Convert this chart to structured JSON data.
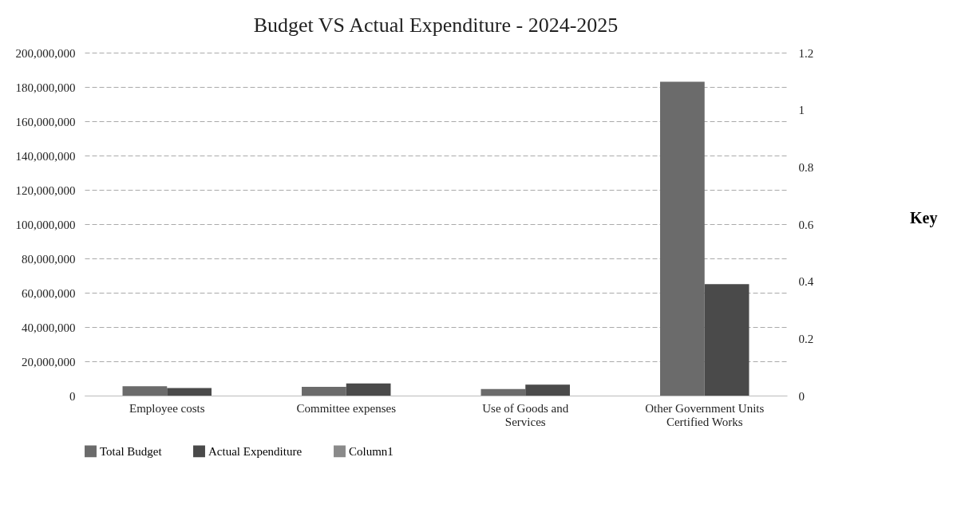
{
  "chart_data": {
    "type": "bar",
    "title": "Budget VS Actual Expenditure - 2024-2025",
    "categories": [
      "Employee costs",
      "Committee expenses",
      "Use of Goods and Services",
      "Other Government Units Certified Works"
    ],
    "series": [
      {
        "name": "Total Budget",
        "color": "#6b6b6b",
        "values": [
          5500000,
          5100000,
          3800000,
          183000000
        ]
      },
      {
        "name": "Actual Expenditure",
        "color": "#4a4a4a",
        "values": [
          4400000,
          7100000,
          6400000,
          65000000
        ]
      },
      {
        "name": "Column1",
        "type": "line",
        "axis": "y2",
        "color": "#8a8a8a",
        "values": [
          null,
          null,
          null,
          null
        ]
      }
    ],
    "ylim": [
      0,
      200000000
    ],
    "yticks": [
      0,
      {
        "value": 20000000,
        "label": "20,000,000"
      },
      {
        "value": 40000000,
        "label": "40,000,000"
      },
      {
        "value": 60000000,
        "label": "60,000,000"
      },
      {
        "value": 80000000,
        "label": "80,000,000"
      },
      {
        "value": 100000000,
        "label": "100,000,000"
      },
      {
        "value": 120000000,
        "label": "120,000,000"
      },
      {
        "value": 140000000,
        "label": "140,000,000"
      },
      {
        "value": 160000000,
        "label": "160,000,000"
      },
      {
        "value": 180000000,
        "label": "180,000,000"
      },
      {
        "value": 200000000,
        "label": "200,000,000"
      }
    ],
    "y2lim": [
      0,
      1.2
    ],
    "y2ticks": [
      0,
      0.2,
      0.4,
      0.6,
      0.8,
      1,
      1.2
    ],
    "grid": "y",
    "legend": "bottom",
    "annotations": [
      "Key"
    ]
  }
}
